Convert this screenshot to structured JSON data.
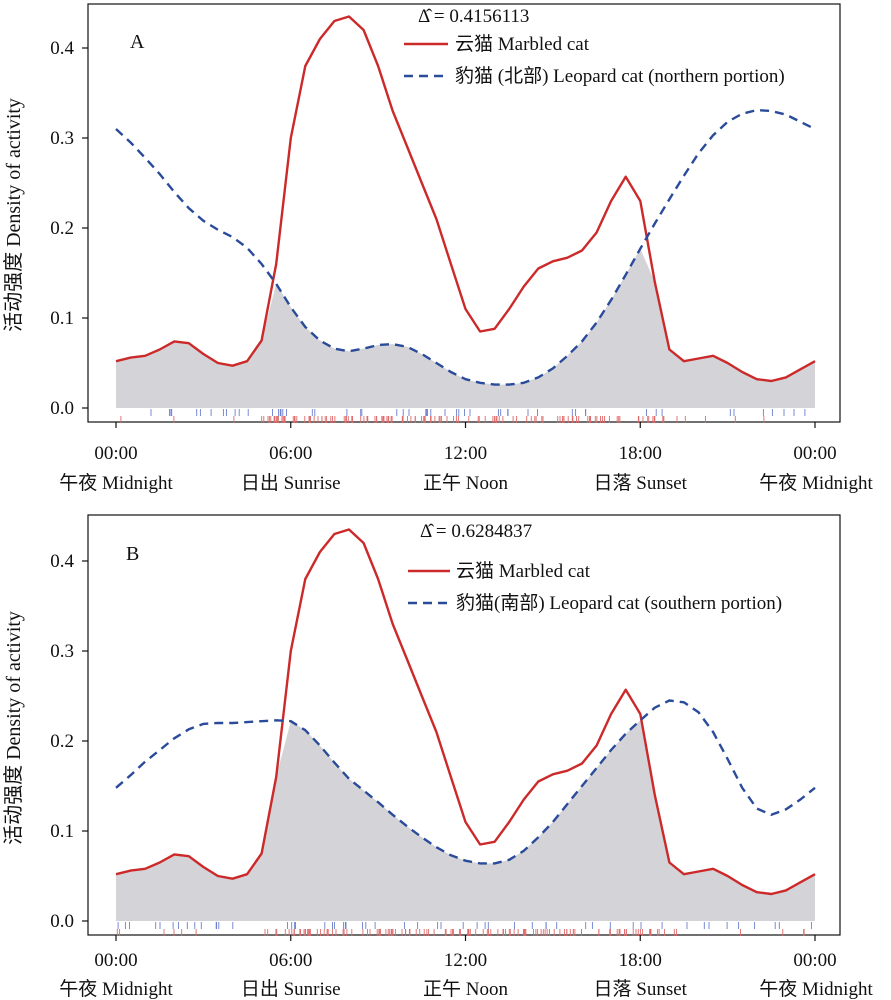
{
  "chart_data": [
    {
      "type": "line",
      "panel_label": "A",
      "overlap_label": "Δ̂ = 0.4156113",
      "ylabel": "活动强度 Density of activity",
      "xlim": [
        0,
        24
      ],
      "ylim": [
        0,
        0.45
      ],
      "yticks": [
        "0.0",
        "0.1",
        "0.2",
        "0.3",
        "0.4"
      ],
      "ytick_values": [
        0,
        0.1,
        0.2,
        0.3,
        0.4
      ],
      "xticks": [
        {
          "value": 0,
          "time": "00:00",
          "label": "午夜 Midnight"
        },
        {
          "value": 6,
          "time": "06:00",
          "label": "日出 Sunrise"
        },
        {
          "value": 12,
          "time": "12:00",
          "label": "正午 Noon"
        },
        {
          "value": 18,
          "time": "18:00",
          "label": "日落 Sunset"
        },
        {
          "value": 24,
          "time": "00:00",
          "label": "午夜 Midnight"
        }
      ],
      "legend_position": "top-right",
      "overlap_fill_color": "#d4d4d8",
      "series": [
        {
          "name": "云猫 Marbled cat",
          "color": "#cc2a2a",
          "style": "solid",
          "x": [
            0,
            0.5,
            1,
            1.5,
            2,
            2.5,
            3,
            3.5,
            4,
            4.5,
            5,
            5.5,
            6,
            6.5,
            7,
            7.5,
            8,
            8.5,
            9,
            9.5,
            10,
            10.5,
            11,
            11.5,
            12,
            12.5,
            13,
            13.5,
            14,
            14.5,
            15,
            15.5,
            16,
            16.5,
            17,
            17.5,
            18,
            18.5,
            19,
            19.5,
            20,
            20.5,
            21,
            21.5,
            22,
            22.5,
            23,
            23.5,
            24
          ],
          "values": [
            0.052,
            0.056,
            0.058,
            0.065,
            0.074,
            0.072,
            0.06,
            0.05,
            0.047,
            0.052,
            0.075,
            0.16,
            0.3,
            0.38,
            0.41,
            0.43,
            0.435,
            0.42,
            0.38,
            0.33,
            0.29,
            0.25,
            0.21,
            0.16,
            0.11,
            0.085,
            0.088,
            0.11,
            0.135,
            0.155,
            0.163,
            0.167,
            0.175,
            0.195,
            0.23,
            0.257,
            0.23,
            0.14,
            0.065,
            0.052,
            0.055,
            0.058,
            0.05,
            0.04,
            0.032,
            0.03,
            0.034,
            0.043,
            0.052
          ]
        },
        {
          "name": "豹猫 (北部) Leopard cat (northern portion)",
          "color": "#2a4a9a",
          "style": "dashed",
          "x": [
            0,
            0.5,
            1,
            1.5,
            2,
            2.5,
            3,
            3.5,
            4,
            4.5,
            5,
            5.5,
            6,
            6.5,
            7,
            7.5,
            8,
            8.5,
            9,
            9.5,
            10,
            10.5,
            11,
            11.5,
            12,
            12.5,
            13,
            13.5,
            14,
            14.5,
            15,
            15.5,
            16,
            16.5,
            17,
            17.5,
            18,
            18.5,
            19,
            19.5,
            20,
            20.5,
            21,
            21.5,
            22,
            22.5,
            23,
            23.5,
            24
          ],
          "values": [
            0.31,
            0.295,
            0.278,
            0.26,
            0.24,
            0.222,
            0.208,
            0.198,
            0.19,
            0.178,
            0.16,
            0.138,
            0.112,
            0.09,
            0.075,
            0.066,
            0.063,
            0.066,
            0.07,
            0.071,
            0.068,
            0.06,
            0.05,
            0.04,
            0.032,
            0.028,
            0.026,
            0.026,
            0.028,
            0.034,
            0.044,
            0.058,
            0.074,
            0.095,
            0.12,
            0.148,
            0.177,
            0.205,
            0.232,
            0.258,
            0.283,
            0.303,
            0.318,
            0.327,
            0.331,
            0.33,
            0.326,
            0.318,
            0.31
          ]
        }
      ]
    },
    {
      "type": "line",
      "panel_label": "B",
      "overlap_label": "Δ̂ = 0.6284837",
      "ylabel": "活动强度 Density of activity",
      "xlim": [
        0,
        24
      ],
      "ylim": [
        0,
        0.45
      ],
      "yticks": [
        "0.0",
        "0.1",
        "0.2",
        "0.3",
        "0.4"
      ],
      "ytick_values": [
        0,
        0.1,
        0.2,
        0.3,
        0.4
      ],
      "xticks": [
        {
          "value": 0,
          "time": "00:00",
          "label": "午夜 Midnight"
        },
        {
          "value": 6,
          "time": "06:00",
          "label": "日出 Sunrise"
        },
        {
          "value": 12,
          "time": "12:00",
          "label": "正午 Noon"
        },
        {
          "value": 18,
          "time": "18:00",
          "label": "日落  Sunset"
        },
        {
          "value": 24,
          "time": "00:00",
          "label": "午夜 Midnight"
        }
      ],
      "legend_position": "top-right",
      "overlap_fill_color": "#d4d4d8",
      "series": [
        {
          "name": "云猫 Marbled cat",
          "color": "#cc2a2a",
          "style": "solid",
          "x": [
            0,
            0.5,
            1,
            1.5,
            2,
            2.5,
            3,
            3.5,
            4,
            4.5,
            5,
            5.5,
            6,
            6.5,
            7,
            7.5,
            8,
            8.5,
            9,
            9.5,
            10,
            10.5,
            11,
            11.5,
            12,
            12.5,
            13,
            13.5,
            14,
            14.5,
            15,
            15.5,
            16,
            16.5,
            17,
            17.5,
            18,
            18.5,
            19,
            19.5,
            20,
            20.5,
            21,
            21.5,
            22,
            22.5,
            23,
            23.5,
            24
          ],
          "values": [
            0.052,
            0.056,
            0.058,
            0.065,
            0.074,
            0.072,
            0.06,
            0.05,
            0.047,
            0.052,
            0.075,
            0.16,
            0.3,
            0.38,
            0.41,
            0.43,
            0.435,
            0.42,
            0.38,
            0.33,
            0.29,
            0.25,
            0.21,
            0.16,
            0.11,
            0.085,
            0.088,
            0.11,
            0.135,
            0.155,
            0.163,
            0.167,
            0.175,
            0.195,
            0.23,
            0.257,
            0.23,
            0.14,
            0.065,
            0.052,
            0.055,
            0.058,
            0.05,
            0.04,
            0.032,
            0.03,
            0.034,
            0.043,
            0.052
          ]
        },
        {
          "name": "豹猫(南部) Leopard cat (southern portion)",
          "color": "#2a4a9a",
          "style": "dashed",
          "x": [
            0,
            0.5,
            1,
            1.5,
            2,
            2.5,
            3,
            3.5,
            4,
            4.5,
            5,
            5.5,
            6,
            6.5,
            7,
            7.5,
            8,
            8.5,
            9,
            9.5,
            10,
            10.5,
            11,
            11.5,
            12,
            12.5,
            13,
            13.5,
            14,
            14.5,
            15,
            15.5,
            16,
            16.5,
            17,
            17.5,
            18,
            18.5,
            19,
            19.5,
            20,
            20.5,
            21,
            21.5,
            22,
            22.5,
            23,
            23.5,
            24
          ],
          "values": [
            0.148,
            0.162,
            0.177,
            0.19,
            0.203,
            0.213,
            0.219,
            0.22,
            0.22,
            0.221,
            0.222,
            0.223,
            0.222,
            0.212,
            0.195,
            0.176,
            0.158,
            0.145,
            0.132,
            0.118,
            0.105,
            0.093,
            0.082,
            0.073,
            0.067,
            0.064,
            0.064,
            0.068,
            0.078,
            0.093,
            0.11,
            0.13,
            0.15,
            0.17,
            0.19,
            0.208,
            0.223,
            0.237,
            0.245,
            0.243,
            0.232,
            0.21,
            0.18,
            0.148,
            0.125,
            0.118,
            0.124,
            0.135,
            0.148
          ]
        }
      ]
    }
  ]
}
